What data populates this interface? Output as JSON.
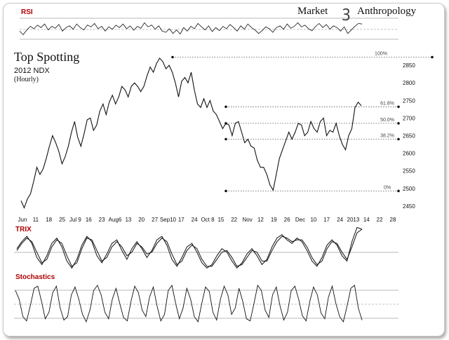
{
  "brand": {
    "left": "Market",
    "right": "Anthropology"
  },
  "title": "Top Spotting",
  "subtitle": "2012 NDX",
  "subtitle2": "(Hourly)",
  "colors": {
    "panel_label": "#b00000",
    "line": "#111111",
    "dotted": "#555555"
  },
  "chart_data": [
    {
      "type": "line",
      "title": "Top Spotting",
      "subtitle": "2012 NDX (Hourly)",
      "series": [
        {
          "values": [
            2465,
            2445,
            2470,
            2485,
            2520,
            2560,
            2540,
            2555,
            2585,
            2620,
            2650,
            2630,
            2605,
            2570,
            2590,
            2620,
            2660,
            2690,
            2645,
            2620,
            2655,
            2695,
            2700,
            2665,
            2680,
            2720,
            2740,
            2710,
            2745,
            2765,
            2740,
            2760,
            2790,
            2780,
            2760,
            2790,
            2800,
            2790,
            2775,
            2790,
            2820,
            2845,
            2830,
            2855,
            2870,
            2860,
            2840,
            2850,
            2830,
            2800,
            2760,
            2805,
            2815,
            2800,
            2830,
            2780,
            2740,
            2730,
            2755,
            2730,
            2750,
            2720,
            2710,
            2690,
            2670,
            2685,
            2680,
            2650,
            2685,
            2690,
            2660,
            2630,
            2640,
            2620,
            2615,
            2580,
            2560,
            2560,
            2540,
            2510,
            2495,
            2540,
            2585,
            2610,
            2635,
            2660,
            2640,
            2660,
            2685,
            2680,
            2650,
            2660,
            2690,
            2670,
            2660,
            2690,
            2700,
            2650,
            2665,
            2660,
            2685,
            2650,
            2625,
            2610,
            2650,
            2670,
            2730,
            2745,
            2735
          ]
        }
      ],
      "y_ticks": [
        2450,
        2500,
        2550,
        2600,
        2650,
        2700,
        2750,
        2800,
        2850
      ],
      "ylim": [
        2430,
        2880
      ],
      "x_ticks": [
        "Jun",
        "11",
        "18",
        "25",
        "Jul 9",
        "16",
        "23",
        "Aug6",
        "13",
        "20",
        "27",
        "Sep10",
        "17",
        "24",
        "Oct 8",
        "15",
        "22",
        "Nov",
        "12",
        "19",
        "26",
        "Dec",
        "10",
        "17",
        "24",
        "2013",
        "14",
        "22",
        "28"
      ],
      "retracement": [
        {
          "label": "100%",
          "value": 2873
        },
        {
          "label": "61.8%",
          "value": 2732
        },
        {
          "label": "50.0%",
          "value": 2685
        },
        {
          "label": "38.2%",
          "value": 2640
        },
        {
          "label": "0%",
          "value": 2493
        }
      ]
    },
    {
      "type": "line",
      "title": "RSI",
      "ylim": [
        0,
        100
      ],
      "reference_lines": [
        30,
        50,
        70
      ],
      "series": [
        {
          "values": [
            40,
            25,
            45,
            60,
            50,
            65,
            55,
            70,
            45,
            60,
            52,
            68,
            40,
            55,
            62,
            48,
            70,
            55,
            45,
            66,
            58,
            72,
            50,
            60,
            40,
            58,
            48,
            65,
            55,
            70,
            50,
            62,
            44,
            60,
            52,
            75,
            58,
            66,
            48,
            62,
            40,
            35,
            50,
            30,
            45,
            28,
            55,
            40,
            60,
            50,
            72,
            58,
            45,
            62,
            38,
            55,
            42,
            60,
            50,
            68,
            55,
            40,
            62,
            48,
            70,
            55,
            45,
            30,
            42,
            58,
            50,
            35,
            55,
            62,
            48,
            70,
            52,
            60,
            75,
            58,
            65,
            50,
            42,
            60,
            72,
            55,
            68,
            48,
            62,
            55,
            40,
            58,
            30,
            45,
            60,
            72,
            70
          ]
        }
      ]
    },
    {
      "type": "line",
      "title": "TRIX",
      "reference_lines": [
        0
      ],
      "series": [
        {
          "values": [
            0.2,
            0.6,
            0.9,
            0.5,
            -0.3,
            -0.7,
            -0.2,
            0.5,
            0.8,
            0.3,
            -0.5,
            -0.9,
            -0.4,
            0.4,
            0.9,
            0.6,
            -0.2,
            -0.6,
            -0.1,
            0.5,
            0.7,
            0.1,
            -0.4,
            0.2,
            0.6,
            0.2,
            -0.3,
            0.1,
            0.7,
            0.9,
            0.4,
            -0.4,
            -0.8,
            -0.3,
            0.3,
            0.5,
            0.0,
            -0.6,
            -0.9,
            -0.7,
            -0.2,
            0.2,
            0.0,
            -0.5,
            -0.9,
            -0.6,
            -0.1,
            0.2,
            -0.2,
            -0.7,
            -0.4,
            0.3,
            0.8,
            1.0,
            0.7,
            0.5,
            0.8,
            0.6,
            0.1,
            -0.5,
            -0.8,
            -0.3,
            0.4,
            0.7,
            0.4,
            -0.2,
            -0.5,
            0.6,
            1.4,
            1.3
          ]
        },
        {
          "values": [
            0.1,
            0.5,
            0.8,
            0.6,
            0.0,
            -0.6,
            -0.4,
            0.3,
            0.7,
            0.5,
            -0.2,
            -0.8,
            -0.6,
            0.2,
            0.8,
            0.7,
            0.1,
            -0.5,
            -0.3,
            0.3,
            0.6,
            0.3,
            -0.2,
            0.0,
            0.5,
            0.3,
            -0.1,
            0.0,
            0.5,
            0.8,
            0.6,
            -0.1,
            -0.7,
            -0.5,
            0.1,
            0.4,
            0.2,
            -0.4,
            -0.8,
            -0.8,
            -0.4,
            0.0,
            0.1,
            -0.3,
            -0.8,
            -0.7,
            -0.3,
            0.1,
            0.0,
            -0.5,
            -0.5,
            0.1,
            0.6,
            0.9,
            0.8,
            0.6,
            0.7,
            0.7,
            0.3,
            -0.3,
            -0.7,
            -0.5,
            0.2,
            0.6,
            0.5,
            0.0,
            -0.4,
            0.3,
            1.1,
            1.3
          ]
        }
      ]
    },
    {
      "type": "line",
      "title": "Stochastics",
      "ylim": [
        0,
        100
      ],
      "reference_lines": [
        20,
        50,
        80
      ],
      "series": [
        {
          "values": [
            80,
            60,
            20,
            10,
            45,
            85,
            90,
            55,
            15,
            30,
            75,
            90,
            40,
            12,
            20,
            70,
            88,
            60,
            25,
            8,
            35,
            80,
            92,
            70,
            30,
            15,
            60,
            85,
            50,
            18,
            10,
            55,
            90,
            75,
            35,
            20,
            65,
            88,
            45,
            10,
            25,
            80,
            92,
            50,
            15,
            40,
            85,
            60,
            20,
            8,
            50,
            88,
            78,
            30,
            12,
            60,
            90,
            70,
            25,
            40,
            85,
            55,
            15,
            10,
            50,
            92,
            80,
            35,
            18,
            70,
            88,
            45,
            12,
            30,
            80,
            90,
            60,
            22,
            10,
            55,
            88,
            70,
            28,
            15,
            65,
            90,
            50,
            20,
            8,
            45,
            85,
            92,
            40,
            12
          ]
        }
      ]
    }
  ]
}
